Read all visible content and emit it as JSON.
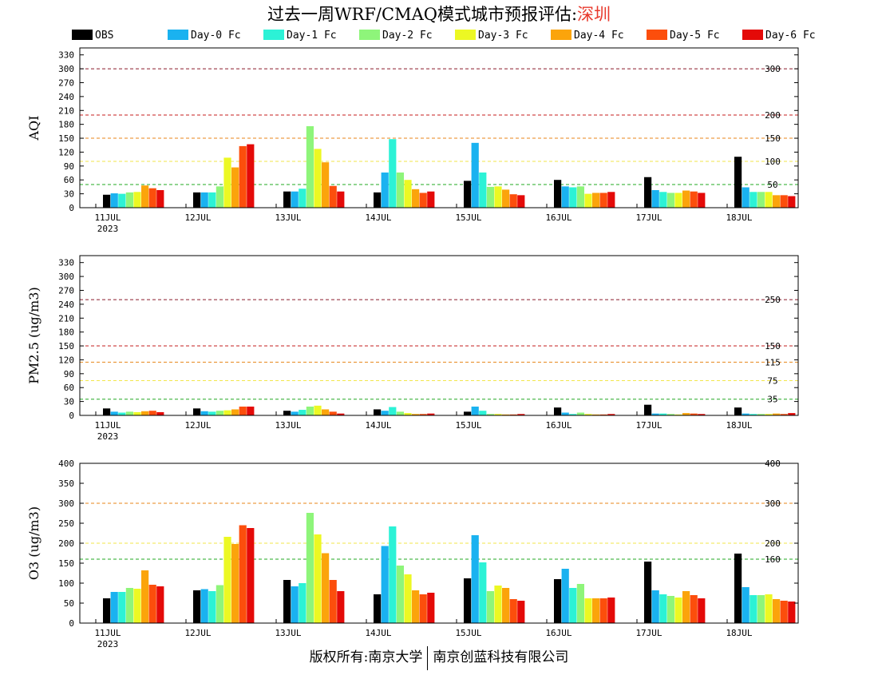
{
  "title": {
    "prefix": "过去一周WRF/CMAQ模式城市预报评估:",
    "city": "深圳"
  },
  "footer": {
    "left": "版权所有:南京大学",
    "right": "南京创蓝科技有限公司"
  },
  "colors": {
    "series": [
      "#000000",
      "#1ab2f0",
      "#2cf2d6",
      "#8ef57a",
      "#ecf823",
      "#fba40b",
      "#fc4e0c",
      "#e40a08"
    ]
  },
  "chart_data": [
    {
      "type": "bar",
      "ylabel": "AQI",
      "ylim": [
        0,
        345
      ],
      "yticks": [
        0,
        30,
        60,
        90,
        120,
        150,
        180,
        210,
        240,
        270,
        300,
        330
      ],
      "categories": [
        "11JUL",
        "12JUL",
        "13JUL",
        "14JUL",
        "15JUL",
        "16JUL",
        "17JUL",
        "18JUL"
      ],
      "year_label": "2023",
      "reference_lines": [
        {
          "value": 300,
          "label": "300",
          "color": "#8b1a2b"
        },
        {
          "value": 200,
          "label": "200",
          "color": "#c41e1e"
        },
        {
          "value": 150,
          "label": "150",
          "color": "#e8861a"
        },
        {
          "value": 100,
          "label": "100",
          "color": "#f2e64a"
        },
        {
          "value": 50,
          "label": "50",
          "color": "#22a822"
        }
      ],
      "series": [
        {
          "name": "OBS",
          "values": [
            28,
            33,
            35,
            33,
            58,
            60,
            66,
            110
          ]
        },
        {
          "name": "Day-0 Fc",
          "values": [
            31,
            33,
            35,
            76,
            140,
            46,
            38,
            44
          ]
        },
        {
          "name": "Day-1 Fc",
          "values": [
            30,
            33,
            41,
            148,
            76,
            44,
            34,
            34
          ]
        },
        {
          "name": "Day-2 Fc",
          "values": [
            33,
            46,
            176,
            76,
            45,
            46,
            32,
            34
          ]
        },
        {
          "name": "Day-3 Fc",
          "values": [
            34,
            108,
            127,
            60,
            46,
            30,
            32,
            34
          ]
        },
        {
          "name": "Day-4 Fc",
          "values": [
            48,
            87,
            98,
            40,
            39,
            32,
            37,
            27
          ]
        },
        {
          "name": "Day-5 Fc",
          "values": [
            42,
            133,
            47,
            32,
            29,
            32,
            35,
            27
          ]
        },
        {
          "name": "Day-6 Fc",
          "values": [
            38,
            137,
            35,
            35,
            27,
            34,
            32,
            25
          ]
        }
      ]
    },
    {
      "type": "bar",
      "ylabel": "PM2.5 (ug/m3)",
      "ylim": [
        0,
        345
      ],
      "yticks": [
        0,
        30,
        60,
        90,
        120,
        150,
        180,
        210,
        240,
        270,
        300,
        330
      ],
      "categories": [
        "11JUL",
        "12JUL",
        "13JUL",
        "14JUL",
        "15JUL",
        "16JUL",
        "17JUL",
        "18JUL"
      ],
      "year_label": "2023",
      "reference_lines": [
        {
          "value": 250,
          "label": "250",
          "color": "#8b1a2b"
        },
        {
          "value": 150,
          "label": "150",
          "color": "#c41e1e"
        },
        {
          "value": 115,
          "label": "115",
          "color": "#e8861a"
        },
        {
          "value": 75,
          "label": "75",
          "color": "#f2e64a"
        },
        {
          "value": 35,
          "label": "35",
          "color": "#22a822"
        }
      ],
      "series": [
        {
          "name": "OBS",
          "values": [
            15,
            15,
            10,
            13,
            8,
            17,
            23,
            17
          ]
        },
        {
          "name": "Day-0 Fc",
          "values": [
            8,
            9,
            8,
            10,
            19,
            6,
            4,
            4
          ]
        },
        {
          "name": "Day-1 Fc",
          "values": [
            6,
            8,
            12,
            18,
            10,
            3,
            4,
            3
          ]
        },
        {
          "name": "Day-2 Fc",
          "values": [
            8,
            10,
            19,
            8,
            3,
            6,
            3,
            3
          ]
        },
        {
          "name": "Day-3 Fc",
          "values": [
            7,
            11,
            21,
            5,
            3,
            3,
            2,
            3
          ]
        },
        {
          "name": "Day-4 Fc",
          "values": [
            9,
            13,
            13,
            3,
            2,
            2,
            5,
            4
          ]
        },
        {
          "name": "Day-5 Fc",
          "values": [
            10,
            19,
            8,
            3,
            2,
            2,
            4,
            3
          ]
        },
        {
          "name": "Day-6 Fc",
          "values": [
            7,
            19,
            4,
            4,
            3,
            3,
            3,
            5
          ]
        }
      ]
    },
    {
      "type": "bar",
      "ylabel": "O3 (ug/m3)",
      "ylim": [
        0,
        400
      ],
      "yticks": [
        0,
        50,
        100,
        150,
        200,
        250,
        300,
        350,
        400
      ],
      "categories": [
        "11JUL",
        "12JUL",
        "13JUL",
        "14JUL",
        "15JUL",
        "16JUL",
        "17JUL",
        "18JUL"
      ],
      "year_label": "2023",
      "reference_lines": [
        {
          "value": 400,
          "label": "400",
          "color": "#8b1a2b"
        },
        {
          "value": 300,
          "label": "300",
          "color": "#e8861a"
        },
        {
          "value": 200,
          "label": "200",
          "color": "#f2e64a"
        },
        {
          "value": 160,
          "label": "160",
          "color": "#22a822"
        }
      ],
      "series": [
        {
          "name": "OBS",
          "values": [
            62,
            82,
            108,
            72,
            112,
            110,
            154,
            174
          ]
        },
        {
          "name": "Day-0 Fc",
          "values": [
            78,
            85,
            92,
            193,
            220,
            136,
            82,
            90
          ]
        },
        {
          "name": "Day-1 Fc",
          "values": [
            78,
            80,
            100,
            242,
            152,
            88,
            72,
            70
          ]
        },
        {
          "name": "Day-2 Fc",
          "values": [
            88,
            95,
            276,
            144,
            80,
            98,
            68,
            70
          ]
        },
        {
          "name": "Day-3 Fc",
          "values": [
            86,
            216,
            222,
            122,
            94,
            62,
            64,
            72
          ]
        },
        {
          "name": "Day-4 Fc",
          "values": [
            132,
            198,
            175,
            82,
            88,
            62,
            80,
            60
          ]
        },
        {
          "name": "Day-5 Fc",
          "values": [
            96,
            245,
            108,
            72,
            60,
            62,
            70,
            56
          ]
        },
        {
          "name": "Day-6 Fc",
          "values": [
            92,
            238,
            80,
            76,
            56,
            64,
            62,
            54
          ]
        }
      ]
    }
  ]
}
